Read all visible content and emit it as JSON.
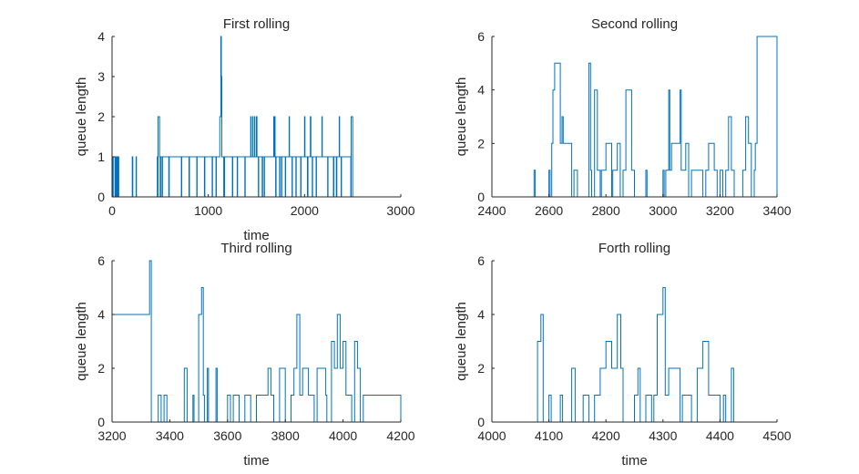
{
  "chart_data": [
    {
      "type": "line",
      "title": "First rolling",
      "xlabel": "time",
      "ylabel": "queue length",
      "xlim": [
        0,
        3000
      ],
      "ylim": [
        0,
        4
      ],
      "xticks": [
        0,
        1000,
        2000,
        3000
      ],
      "yticks": [
        0,
        1,
        2,
        3,
        4
      ],
      "xtick_labels": [
        "0",
        "1000",
        "2000",
        "3000"
      ],
      "ytick_labels": [
        "0",
        "1",
        "2",
        "3",
        "4"
      ],
      "series": [
        {
          "color": "#0072BD",
          "x": [
            0,
            2,
            6,
            12,
            30,
            34,
            38,
            44,
            52,
            60,
            64,
            70,
            210,
            216,
            250,
            254,
            470,
            474,
            478,
            494,
            500,
            505,
            520,
            524,
            590,
            594,
            720,
            724,
            800,
            804,
            880,
            884,
            960,
            964,
            1040,
            1044,
            1080,
            1084,
            1120,
            1130,
            1136,
            1140,
            1160,
            1170,
            1250,
            1254,
            1300,
            1304,
            1380,
            1384,
            1440,
            1444,
            1460,
            1464,
            1480,
            1484,
            1500,
            1506,
            1520,
            1524,
            1560,
            1564,
            1580,
            1584,
            1680,
            1684,
            1690,
            1694,
            1700,
            1704,
            1740,
            1744,
            1760,
            1764,
            1800,
            1804,
            1840,
            1844,
            1870,
            1874,
            1910,
            1914,
            1960,
            1964,
            2000,
            2004,
            2030,
            2036,
            2060,
            2066,
            2080,
            2084,
            2120,
            2124,
            2180,
            2184,
            2240,
            2244,
            2300,
            2304,
            2330,
            2336,
            2360,
            2364,
            2380,
            2384,
            2480,
            2484,
            2500,
            3000
          ],
          "y": [
            1,
            0,
            1,
            0,
            1,
            0,
            1,
            0,
            1,
            0,
            1,
            0,
            1,
            0,
            1,
            0,
            1,
            0,
            2,
            1,
            0,
            1,
            0,
            1,
            0,
            1,
            0,
            1,
            0,
            1,
            0,
            1,
            0,
            1,
            0,
            1,
            0,
            1,
            2,
            4,
            3,
            1,
            0,
            1,
            0,
            1,
            0,
            1,
            0,
            1,
            2,
            1,
            2,
            1,
            2,
            1,
            2,
            1,
            0,
            1,
            0,
            1,
            0,
            1,
            2,
            1,
            2,
            1,
            0,
            1,
            0,
            1,
            0,
            1,
            0,
            1,
            2,
            1,
            0,
            1,
            0,
            1,
            0,
            1,
            2,
            1,
            0,
            1,
            2,
            1,
            0,
            1,
            0,
            1,
            2,
            1,
            0,
            1,
            0,
            1,
            0,
            1,
            2,
            1,
            0,
            1,
            0,
            2,
            0,
            0
          ]
        }
      ]
    },
    {
      "type": "line",
      "title": "Second rolling",
      "xlabel": "",
      "ylabel": "queue length",
      "xlim": [
        2400,
        3400
      ],
      "ylim": [
        0,
        6
      ],
      "xticks": [
        2400,
        2600,
        2800,
        3000,
        3200,
        3400
      ],
      "yticks": [
        0,
        2,
        4,
        6
      ],
      "xtick_labels": [
        "2400",
        "2600",
        "2800",
        "3000",
        "3200",
        "3400"
      ],
      "ytick_labels": [
        "0",
        "2",
        "4",
        "6"
      ],
      "series": [
        {
          "color": "#0072BD",
          "x": [
            2400,
            2548,
            2552,
            2560,
            2600,
            2604,
            2610,
            2614,
            2620,
            2640,
            2646,
            2650,
            2680,
            2688,
            2700,
            2740,
            2746,
            2750,
            2760,
            2770,
            2780,
            2784,
            2800,
            2820,
            2824,
            2840,
            2850,
            2860,
            2870,
            2890,
            2900,
            2940,
            2944,
            3000,
            3004,
            3010,
            3020,
            3024,
            3030,
            3060,
            3064,
            3080,
            3090,
            3100,
            3140,
            3150,
            3160,
            3180,
            3190,
            3200,
            3210,
            3220,
            3230,
            3240,
            3250,
            3280,
            3290,
            3300,
            3310,
            3320,
            3324,
            3330,
            3400
          ],
          "y": [
            0,
            1,
            0,
            0,
            1,
            0,
            2,
            4,
            5,
            2,
            3,
            2,
            0,
            1,
            0,
            5,
            1,
            0,
            4,
            1,
            0,
            1,
            2,
            0,
            1,
            2,
            0,
            1,
            4,
            1,
            0,
            1,
            0,
            1,
            0,
            1,
            4,
            1,
            2,
            4,
            1,
            2,
            0,
            1,
            0,
            1,
            2,
            1,
            0,
            1,
            0,
            1,
            3,
            1,
            0,
            1,
            3,
            2,
            0,
            1,
            2,
            6,
            0
          ]
        }
      ]
    },
    {
      "type": "line",
      "title": "Third rolling",
      "xlabel": "time",
      "ylabel": "queue length",
      "xlim": [
        3200,
        4200
      ],
      "ylim": [
        0,
        6
      ],
      "xticks": [
        3200,
        3400,
        3600,
        3800,
        4000,
        4200
      ],
      "yticks": [
        0,
        2,
        4,
        6
      ],
      "xtick_labels": [
        "3200",
        "3400",
        "3600",
        "3800",
        "4000",
        "4200"
      ],
      "ytick_labels": [
        "0",
        "2",
        "4",
        "6"
      ],
      "series": [
        {
          "color": "#0072BD",
          "x": [
            3200,
            3330,
            3336,
            3340,
            3360,
            3370,
            3380,
            3390,
            3394,
            3400,
            3450,
            3460,
            3480,
            3484,
            3500,
            3510,
            3516,
            3520,
            3530,
            3534,
            3560,
            3564,
            3600,
            3610,
            3620,
            3640,
            3660,
            3680,
            3700,
            3740,
            3750,
            3760,
            3780,
            3800,
            3820,
            3830,
            3840,
            3850,
            3860,
            3880,
            3900,
            3910,
            3940,
            3944,
            3960,
            3970,
            3980,
            3990,
            4000,
            4010,
            4030,
            4040,
            4050,
            4060,
            4070,
            4200
          ],
          "y": [
            4,
            6,
            0,
            0,
            1,
            0,
            1,
            0,
            0,
            0,
            2,
            0,
            1,
            0,
            4,
            5,
            1,
            0,
            2,
            0,
            2,
            0,
            1,
            0,
            1,
            0,
            1,
            0,
            1,
            2,
            1,
            0,
            2,
            0,
            1,
            2,
            4,
            1,
            2,
            1,
            0,
            2,
            1,
            0,
            3,
            2,
            4,
            2,
            3,
            1,
            0,
            3,
            2,
            0,
            1,
            0
          ]
        }
      ]
    },
    {
      "type": "line",
      "title": "Forth rolling",
      "xlabel": "time",
      "ylabel": "queue length",
      "xlim": [
        4000,
        4500
      ],
      "ylim": [
        0,
        6
      ],
      "xticks": [
        4000,
        4100,
        4200,
        4300,
        4400,
        4500
      ],
      "yticks": [
        0,
        2,
        4,
        6
      ],
      "xtick_labels": [
        "4000",
        "4100",
        "4200",
        "4300",
        "4400",
        "4500"
      ],
      "ytick_labels": [
        "0",
        "2",
        "4",
        "6"
      ],
      "series": [
        {
          "color": "#0072BD",
          "x": [
            4000,
            4080,
            4086,
            4090,
            4100,
            4104,
            4120,
            4124,
            4140,
            4146,
            4160,
            4170,
            4180,
            4190,
            4200,
            4210,
            4220,
            4226,
            4230,
            4250,
            4256,
            4260,
            4270,
            4280,
            4284,
            4290,
            4300,
            4304,
            4310,
            4330,
            4334,
            4350,
            4360,
            4370,
            4380,
            4400,
            4406,
            4410,
            4420,
            4424,
            4500
          ],
          "y": [
            0,
            3,
            4,
            0,
            1,
            0,
            1,
            0,
            2,
            0,
            1,
            0,
            1,
            2,
            3,
            2,
            4,
            2,
            0,
            1,
            2,
            0,
            1,
            0,
            1,
            4,
            5,
            1,
            2,
            0,
            1,
            0,
            2,
            3,
            1,
            0,
            1,
            0,
            2,
            0,
            0
          ]
        }
      ]
    }
  ]
}
